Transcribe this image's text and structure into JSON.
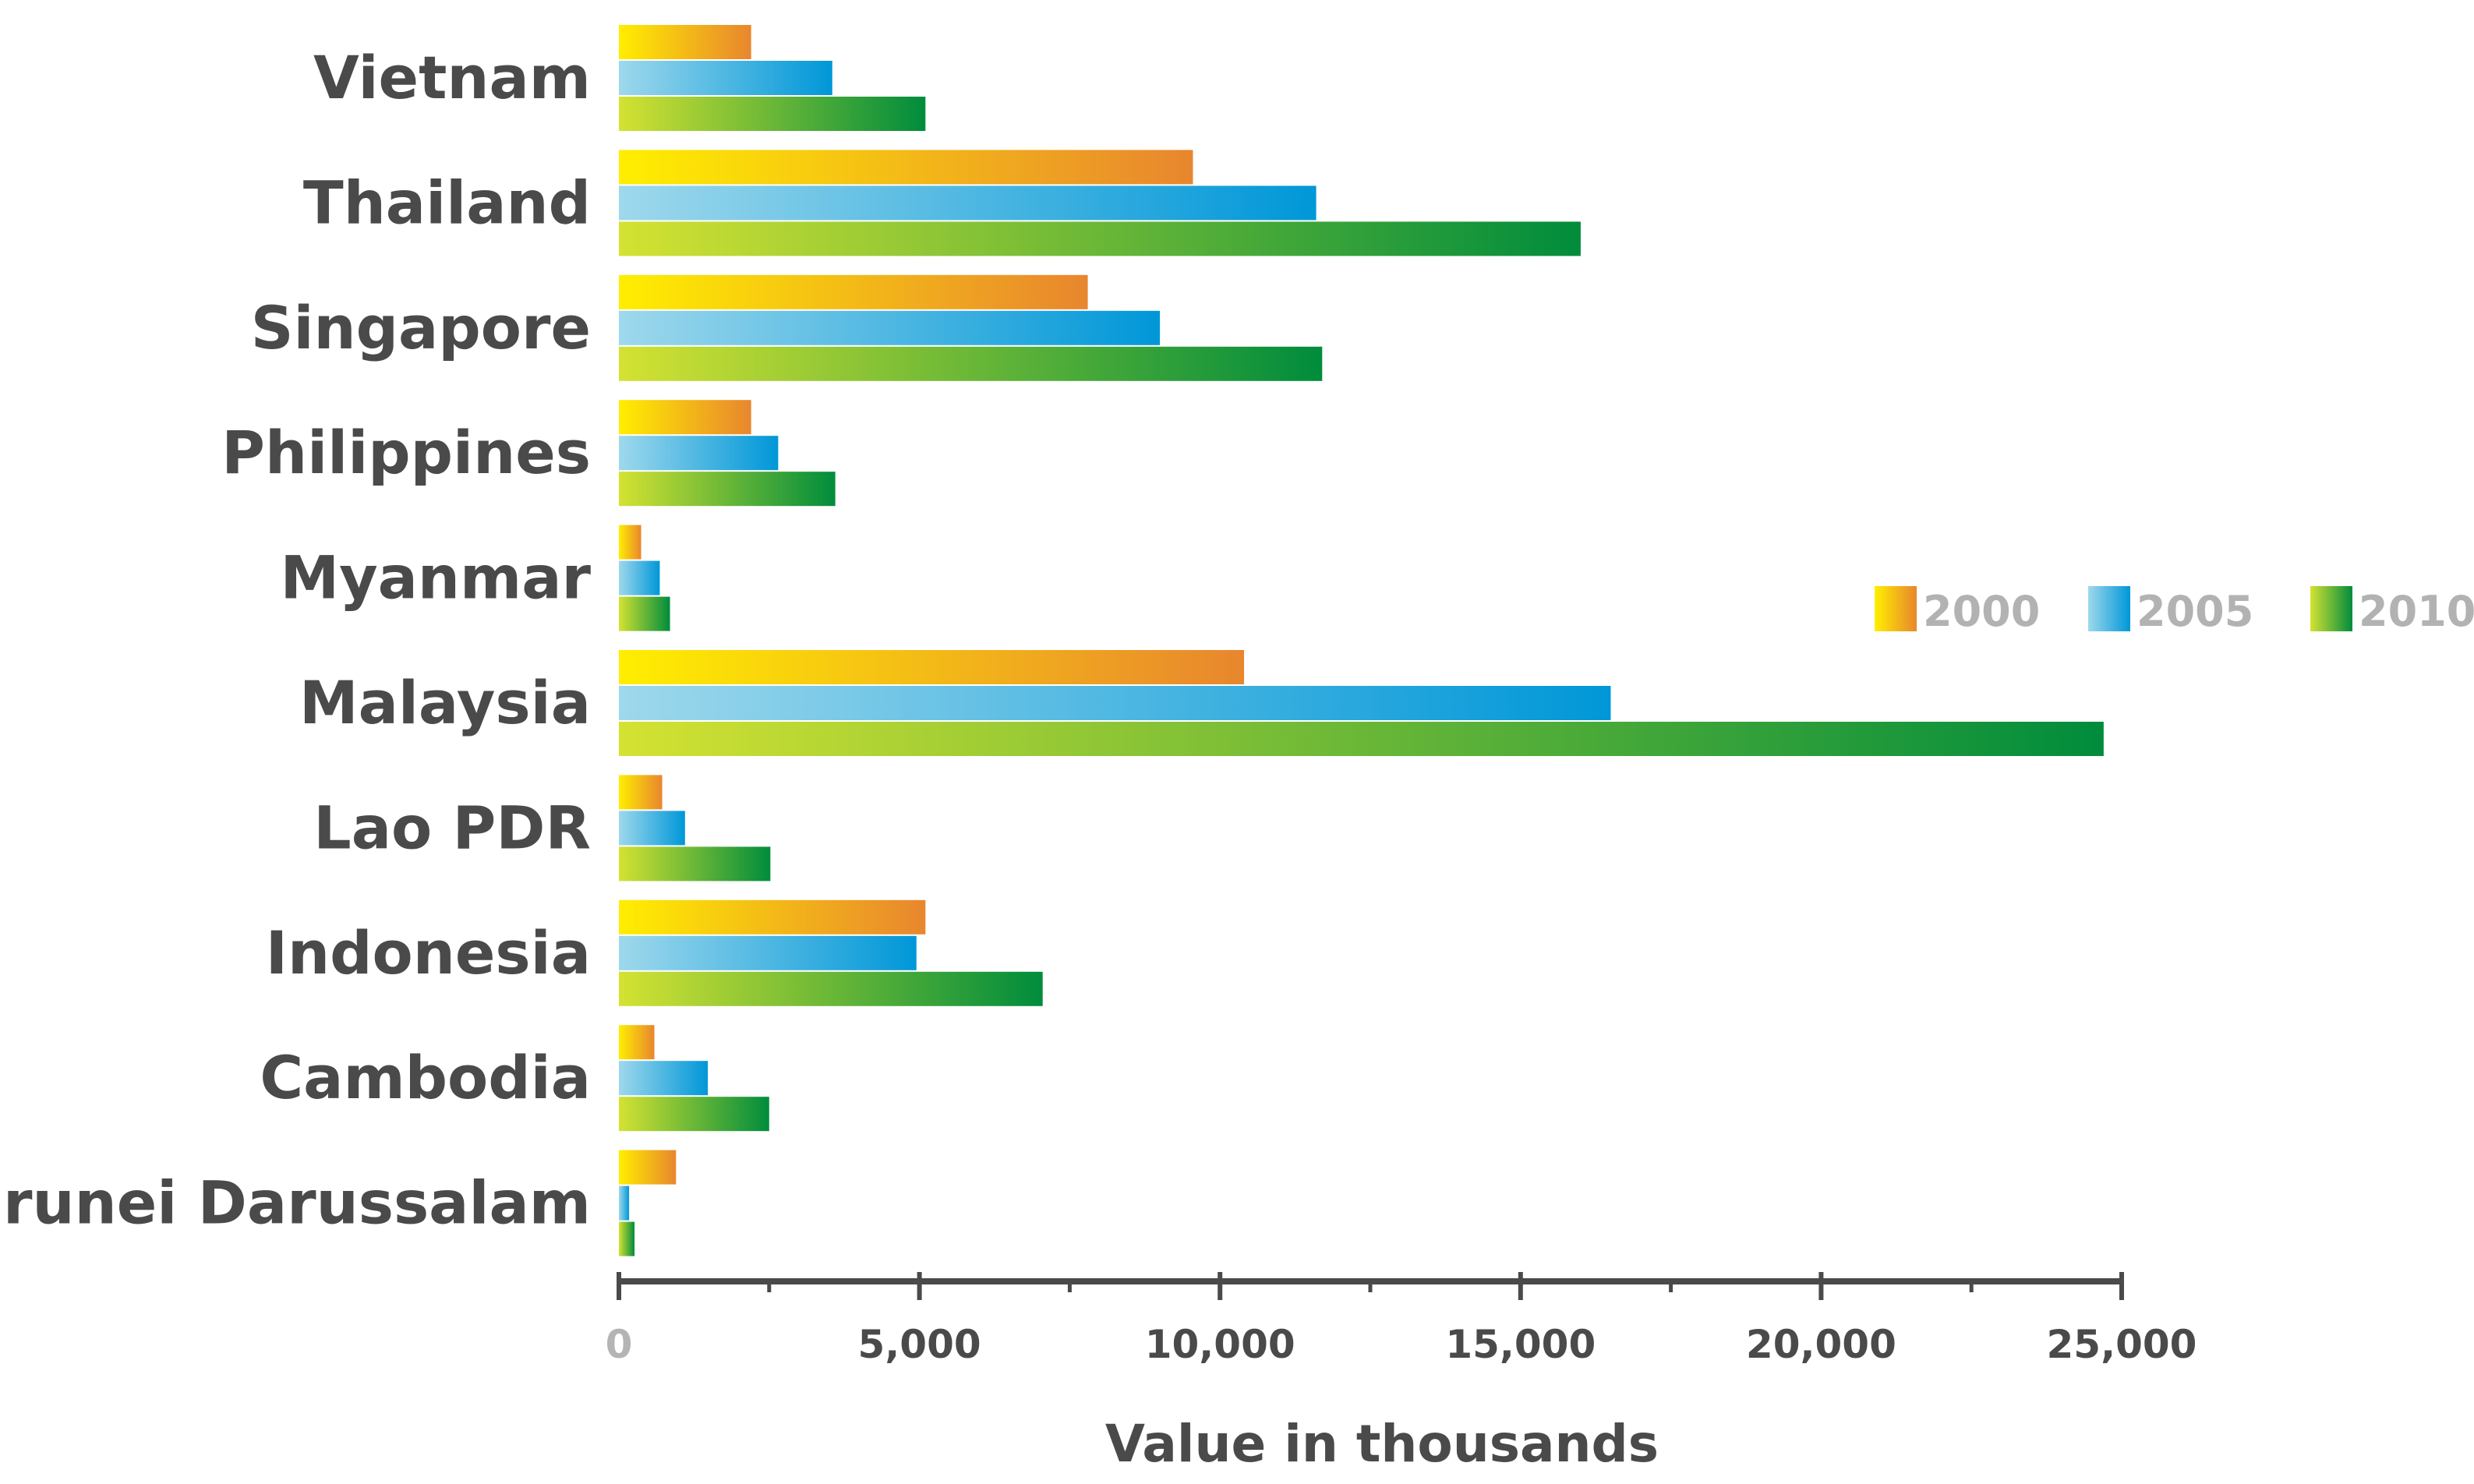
{
  "chart_data": {
    "type": "bar",
    "orientation": "horizontal",
    "categories": [
      "Vietnam",
      "Thailand",
      "Singapore",
      "Philippines",
      "Myanmar",
      "Malaysia",
      "Lao PDR",
      "Indonesia",
      "Cambodia",
      "Brunei Darussalam"
    ],
    "series": [
      {
        "name": "2000",
        "values": [
          2200,
          9550,
          7800,
          2200,
          370,
          10400,
          720,
          5100,
          590,
          950
        ]
      },
      {
        "name": "2005",
        "values": [
          3550,
          11600,
          9000,
          2650,
          680,
          16500,
          1100,
          4950,
          1480,
          170
        ]
      },
      {
        "name": "2010",
        "values": [
          5100,
          16000,
          11700,
          3600,
          850,
          24700,
          2520,
          7050,
          2500,
          260
        ]
      }
    ],
    "xlabel": "Value in thousands",
    "xlim": [
      0,
      25000
    ],
    "xticks": [
      0,
      5000,
      10000,
      15000,
      20000,
      25000
    ],
    "xtick_labels": [
      "0",
      "5,000",
      "10,000",
      "15,000",
      "20,000",
      "25,000"
    ],
    "grid": false,
    "legend_position": "right",
    "series_colors": {
      "2000": [
        "#ffee00",
        "#e8862e"
      ],
      "2005": [
        "#9ed8ec",
        "#0097d8"
      ],
      "2010": [
        "#d4e232",
        "#008c3c"
      ]
    },
    "axis_color": "#4a4a4a"
  }
}
